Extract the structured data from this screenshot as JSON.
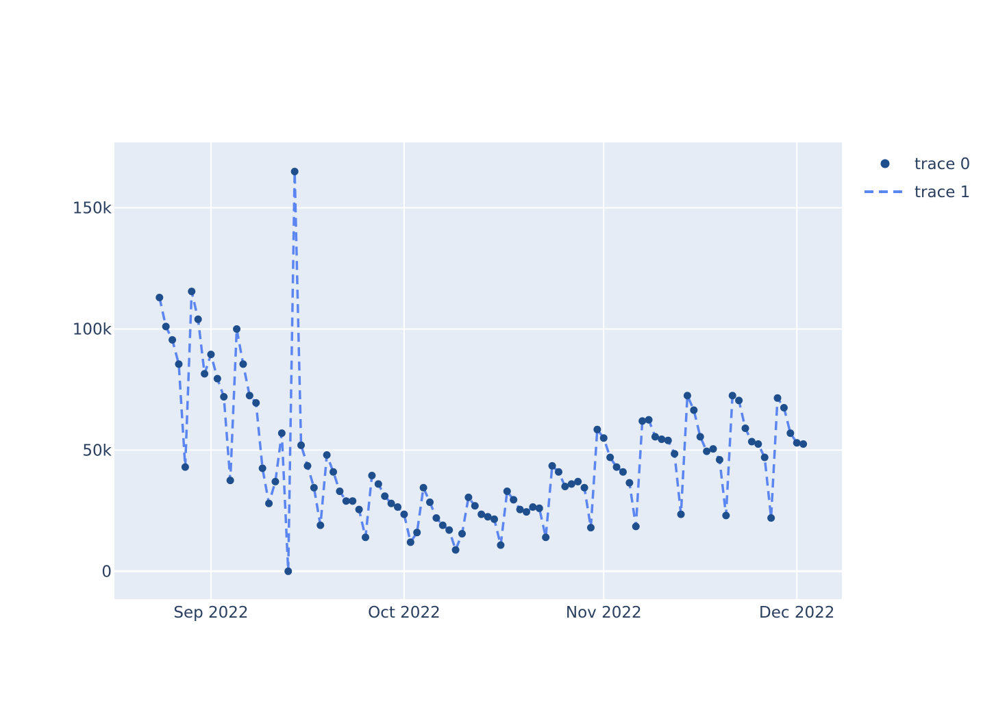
{
  "chart_data": {
    "type": "scatter",
    "title": "",
    "xlabel": "",
    "ylabel": "",
    "ylim": [
      -11500,
      177000
    ],
    "xlim": [
      "2022-08-17",
      "2022-12-08"
    ],
    "x_ticks": [
      {
        "date": "2022-09-01",
        "label": "Sep 2022"
      },
      {
        "date": "2022-10-01",
        "label": "Oct 2022"
      },
      {
        "date": "2022-11-01",
        "label": "Nov 2022"
      },
      {
        "date": "2022-12-01",
        "label": "Dec 2022"
      }
    ],
    "y_ticks": [
      {
        "value": 0,
        "label": "0"
      },
      {
        "value": 50000,
        "label": "50k"
      },
      {
        "value": 100000,
        "label": "100k"
      },
      {
        "value": 150000,
        "label": "150k"
      }
    ],
    "grid": true,
    "legend_position": "top-right",
    "colors": {
      "plot_background": "#e5ecf6",
      "grid": "#ffffff",
      "trace0": "#1f4e8c",
      "trace1": "#5b85f0",
      "text": "#2a3f5f"
    },
    "x": [
      "2022-08-24",
      "2022-08-25",
      "2022-08-26",
      "2022-08-27",
      "2022-08-28",
      "2022-08-29",
      "2022-08-30",
      "2022-08-31",
      "2022-09-01",
      "2022-09-02",
      "2022-09-03",
      "2022-09-04",
      "2022-09-05",
      "2022-09-06",
      "2022-09-07",
      "2022-09-08",
      "2022-09-09",
      "2022-09-10",
      "2022-09-11",
      "2022-09-12",
      "2022-09-13",
      "2022-09-14",
      "2022-09-15",
      "2022-09-16",
      "2022-09-17",
      "2022-09-18",
      "2022-09-19",
      "2022-09-20",
      "2022-09-21",
      "2022-09-22",
      "2022-09-23",
      "2022-09-24",
      "2022-09-25",
      "2022-09-26",
      "2022-09-27",
      "2022-09-28",
      "2022-09-29",
      "2022-09-30",
      "2022-10-01",
      "2022-10-02",
      "2022-10-03",
      "2022-10-04",
      "2022-10-05",
      "2022-10-06",
      "2022-10-07",
      "2022-10-08",
      "2022-10-09",
      "2022-10-10",
      "2022-10-11",
      "2022-10-12",
      "2022-10-13",
      "2022-10-14",
      "2022-10-15",
      "2022-10-16",
      "2022-10-17",
      "2022-10-18",
      "2022-10-19",
      "2022-10-20",
      "2022-10-21",
      "2022-10-22",
      "2022-10-23",
      "2022-10-24",
      "2022-10-25",
      "2022-10-26",
      "2022-10-27",
      "2022-10-28",
      "2022-10-29",
      "2022-10-30",
      "2022-10-31",
      "2022-11-01",
      "2022-11-02",
      "2022-11-03",
      "2022-11-04",
      "2022-11-05",
      "2022-11-06",
      "2022-11-07",
      "2022-11-08",
      "2022-11-09",
      "2022-11-10",
      "2022-11-11",
      "2022-11-12",
      "2022-11-13",
      "2022-11-14",
      "2022-11-15",
      "2022-11-16",
      "2022-11-17",
      "2022-11-18",
      "2022-11-19",
      "2022-11-20",
      "2022-11-21",
      "2022-11-22",
      "2022-11-23",
      "2022-11-24",
      "2022-11-25",
      "2022-11-26",
      "2022-11-27",
      "2022-11-28",
      "2022-11-29",
      "2022-11-30",
      "2022-12-01",
      "2022-12-02"
    ],
    "series": [
      {
        "name": "trace 0",
        "mode": "markers",
        "values": [
          113000,
          101000,
          95500,
          85500,
          43000,
          115500,
          104000,
          81500,
          89500,
          79500,
          72000,
          37500,
          100000,
          85500,
          72500,
          69500,
          42500,
          28000,
          37000,
          57000,
          0,
          165000,
          52000,
          43500,
          34500,
          19000,
          48000,
          41000,
          33000,
          29000,
          29000,
          25500,
          14000,
          39500,
          36000,
          31000,
          28000,
          26500,
          23500,
          12000,
          16000,
          34500,
          28500,
          22000,
          19000,
          17000,
          8800,
          15500,
          30500,
          27000,
          23500,
          22500,
          21500,
          10800,
          33000,
          29500,
          25500,
          24500,
          26500,
          26000,
          14000,
          43500,
          41000,
          35000,
          36000,
          37000,
          34500,
          18000,
          58500,
          55000,
          47000,
          43000,
          41000,
          36500,
          18500,
          62000,
          62500,
          55500,
          54500,
          54000,
          48500,
          23500,
          72500,
          66500,
          55500,
          49500,
          50500,
          46000,
          23000,
          72500,
          70500,
          59000,
          53500,
          52500,
          47000,
          22000,
          71500,
          67500,
          57000,
          53000,
          52500
        ]
      },
      {
        "name": "trace 1",
        "mode": "lines",
        "dash": "dash",
        "values": [
          113000,
          101000,
          95500,
          85500,
          43000,
          115500,
          104000,
          81500,
          89500,
          79500,
          72000,
          37500,
          100000,
          85500,
          72500,
          69500,
          42500,
          28000,
          37000,
          57000,
          0,
          165000,
          52000,
          43500,
          34500,
          19000,
          48000,
          41000,
          33000,
          29000,
          29000,
          25500,
          14000,
          39500,
          36000,
          31000,
          28000,
          26500,
          23500,
          12000,
          16000,
          34500,
          28500,
          22000,
          19000,
          17000,
          8800,
          15500,
          30500,
          27000,
          23500,
          22500,
          21500,
          10800,
          33000,
          29500,
          25500,
          24500,
          26500,
          26000,
          14000,
          43500,
          41000,
          35000,
          36000,
          37000,
          34500,
          18000,
          58500,
          55000,
          47000,
          43000,
          41000,
          36500,
          18500,
          62000,
          62500,
          55500,
          54500,
          54000,
          48500,
          23500,
          72500,
          66500,
          55500,
          49500,
          50500,
          46000,
          23000,
          72500,
          70500,
          59000,
          53500,
          52500,
          47000,
          22000,
          71500,
          67500,
          57000,
          53000,
          52500
        ]
      }
    ]
  }
}
